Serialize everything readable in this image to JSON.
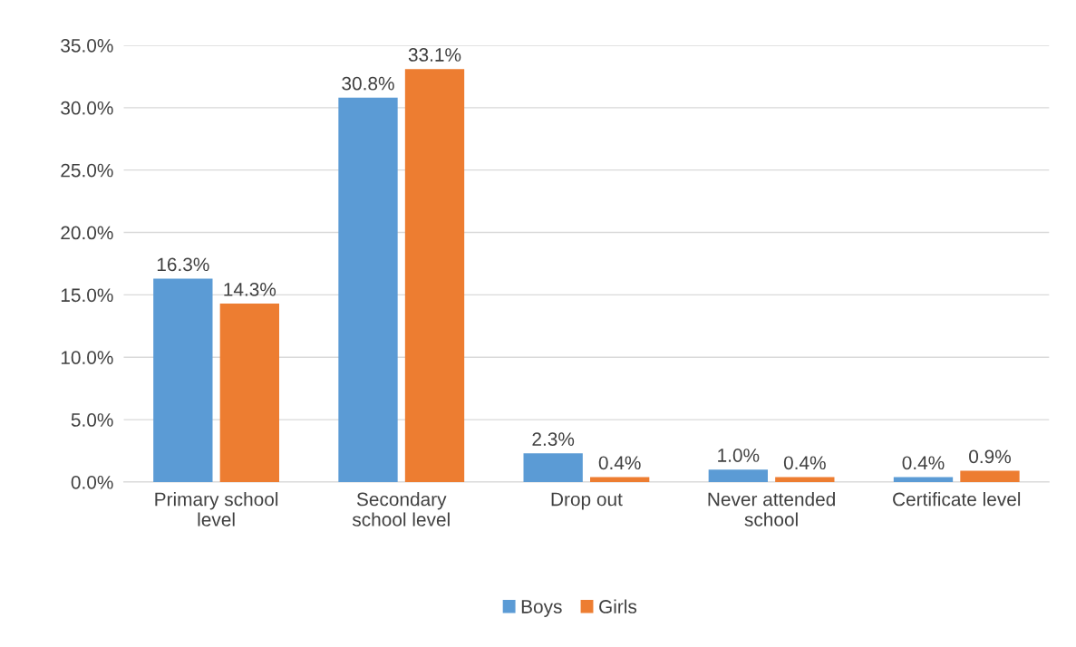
{
  "chart_data": {
    "type": "bar",
    "categories": [
      "Primary school\nlevel",
      "Secondary\nschool level",
      "Drop out",
      "Never attended\nschool",
      "Certificate level"
    ],
    "series": [
      {
        "name": "Boys",
        "color": "#5b9bd5",
        "values": [
          16.3,
          30.8,
          2.3,
          1.0,
          0.4
        ],
        "value_labels": [
          "16.3%",
          "30.8%",
          "2.3%",
          "1.0%",
          "0.4%"
        ]
      },
      {
        "name": "Girls",
        "color": "#ed7d31",
        "values": [
          14.3,
          33.1,
          0.4,
          0.4,
          0.9
        ],
        "value_labels": [
          "14.3%",
          "33.1%",
          "0.4%",
          "0.4%",
          "0.9%"
        ]
      }
    ],
    "ylim": [
      0,
      35
    ],
    "yticks": [
      {
        "value": 0,
        "label": "0.0%"
      },
      {
        "value": 5,
        "label": "5.0%"
      },
      {
        "value": 10,
        "label": "10.0%"
      },
      {
        "value": 15,
        "label": "15.0%"
      },
      {
        "value": 20,
        "label": "20.0%"
      },
      {
        "value": 25,
        "label": "25.0%"
      },
      {
        "value": 30,
        "label": "30.0%"
      },
      {
        "value": 35,
        "label": "35.0%"
      }
    ],
    "grid": "y",
    "legend": "bottom"
  }
}
